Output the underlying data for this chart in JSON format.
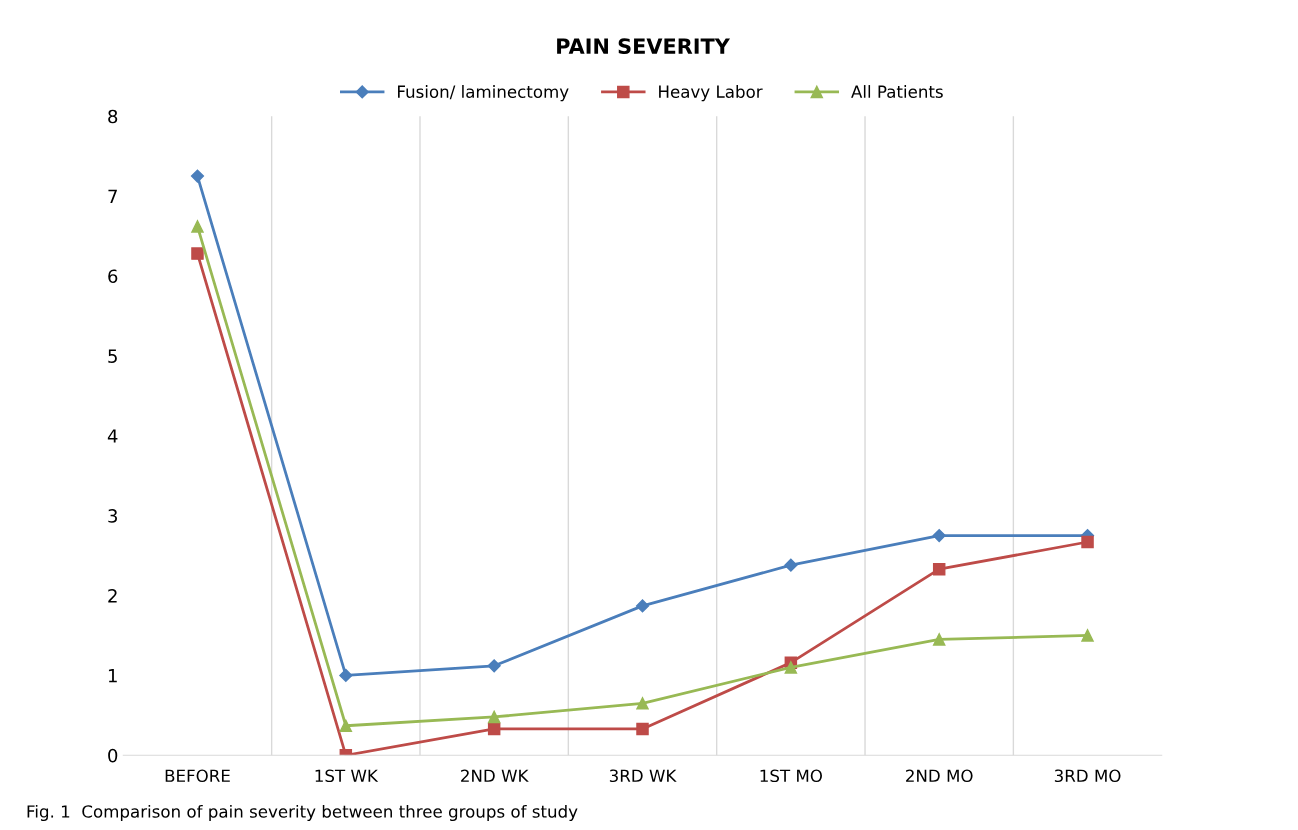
{
  "chart_data": {
    "type": "line",
    "title": "PAIN SEVERITY",
    "categories": [
      "BEFORE",
      "1ST WK",
      "2ND WK",
      "3RD WK",
      "1ST MO",
      "2ND MO",
      "3RD MO"
    ],
    "series": [
      {
        "name": "Fusion/ laminectomy",
        "color": "#4a7ebb",
        "marker": "diamond",
        "values": [
          7.25,
          1.0,
          1.12,
          1.87,
          2.38,
          2.75,
          2.75
        ]
      },
      {
        "name": "Heavy Labor",
        "color": "#be4b48",
        "marker": "square",
        "values": [
          6.28,
          0,
          0.33,
          0.33,
          1.16,
          2.33,
          2.67
        ]
      },
      {
        "name": "All Patients",
        "color": "#98b954",
        "marker": "triangle",
        "values": [
          6.62,
          0.37,
          0.48,
          0.65,
          1.1,
          1.45,
          1.5
        ]
      }
    ],
    "ylim": [
      0,
      8
    ],
    "yticks": [
      0,
      1,
      2,
      3,
      4,
      5,
      6,
      7,
      8
    ],
    "grid": "x",
    "legend": "top",
    "line_style": "solid",
    "annotations": [
      "Fig. 1  Comparison of pain severity between three groups of study"
    ]
  }
}
